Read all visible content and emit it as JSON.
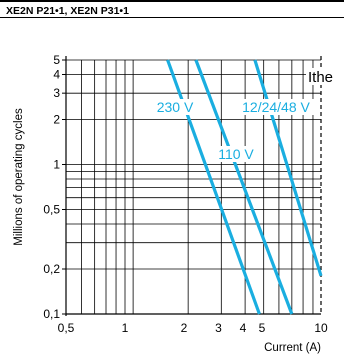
{
  "header": {
    "title": "XE2N P21•1, XE2N P31•1"
  },
  "chart_data": {
    "type": "line",
    "title": "XE2N P21•1, XE2N P31•1",
    "xlabel": "Current (A)",
    "ylabel": "Millions of operating cycles",
    "xscale": "log",
    "yscale": "log",
    "xlim": [
      0.5,
      10
    ],
    "ylim": [
      0.1,
      5
    ],
    "x_ticks": [
      0.5,
      1,
      2,
      3,
      4,
      5,
      10
    ],
    "x_tick_labels": [
      "0,5",
      "1",
      "2",
      "3",
      "4",
      "5",
      "10"
    ],
    "y_ticks": [
      0.1,
      0.2,
      0.5,
      1,
      2,
      3,
      4,
      5
    ],
    "y_tick_labels": [
      "0,1",
      "0,2",
      "0,5",
      "1",
      "2",
      "3",
      "4",
      "5"
    ],
    "grid": true,
    "series": [
      {
        "name": "230 V",
        "points": [
          [
            1.65,
            5
          ],
          [
            4.85,
            0.1
          ]
        ]
      },
      {
        "name": "110 V",
        "points": [
          [
            2.3,
            5
          ],
          [
            7.1,
            0.1
          ]
        ]
      },
      {
        "name": "12/24/48 V",
        "points": [
          [
            4.6,
            5
          ],
          [
            10,
            0.18
          ]
        ]
      }
    ],
    "limit_line": {
      "label": "Ithe",
      "x": 10
    },
    "line_color": "#1aaee0"
  }
}
